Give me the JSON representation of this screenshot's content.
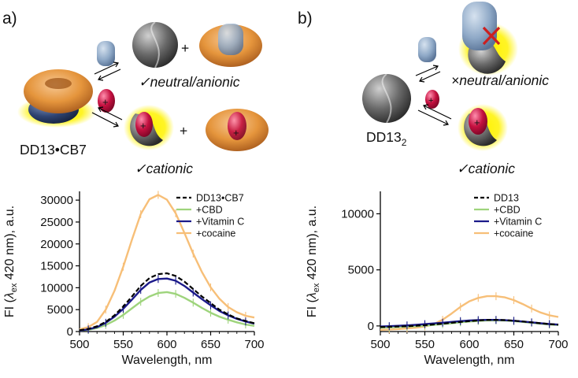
{
  "panels": {
    "a": {
      "letter": "a)",
      "host_label": "DD13•CB7",
      "neutral_label": "✓neutral/anionic",
      "cationic_label": "✓cationic",
      "plus": "+"
    },
    "b": {
      "letter": "b)",
      "host_main": "DD13",
      "host_sub": "2",
      "neutral_label": "×neutral/anionic",
      "cationic_label": "✓cationic",
      "plus": "+"
    }
  },
  "colors": {
    "host": "#000000",
    "cbd": "#9ed47c",
    "vitaminc": "#1b1a8a",
    "cocaine": "#f7bf78",
    "cb7": "#e5953c",
    "guest_neutral": "#8fa9c7",
    "guest_cation": "#c4103f",
    "glow": "#fff200",
    "dye": "#5a5a5a",
    "cross": "#cc1f1f"
  },
  "chart_data": [
    {
      "type": "line",
      "panel": "a",
      "xlabel": "Wavelength, nm",
      "ylabel_parts": [
        "FI (",
        "λ",
        "ex",
        " 420 nm), a.u."
      ],
      "xlim": [
        500,
        700
      ],
      "ylim": [
        0,
        32000
      ],
      "xticks": [
        500,
        550,
        600,
        650,
        700
      ],
      "yticks": [
        0,
        5000,
        10000,
        15000,
        20000,
        25000,
        30000
      ],
      "x": [
        500,
        510,
        520,
        530,
        540,
        550,
        560,
        570,
        580,
        590,
        600,
        610,
        620,
        630,
        640,
        650,
        660,
        670,
        680,
        690,
        700
      ],
      "series": [
        {
          "name": "DD13•CB7",
          "color_key": "host",
          "dashed": true,
          "values": [
            300,
            600,
            1200,
            2200,
            3700,
            5700,
            8000,
            10400,
            12200,
            13100,
            13300,
            12700,
            11400,
            9700,
            8000,
            6500,
            5000,
            3900,
            3000,
            2400,
            1900
          ]
        },
        {
          "name": "+CBD",
          "color_key": "cbd",
          "dashed": false,
          "values": [
            200,
            400,
            800,
            1500,
            2500,
            3800,
            5300,
            6800,
            8000,
            8800,
            9000,
            8600,
            7700,
            6600,
            5400,
            4300,
            3400,
            2700,
            2100,
            1600,
            1300
          ]
        },
        {
          "name": "+Vitamin C",
          "color_key": "vitaminc",
          "dashed": false,
          "values": [
            200,
            500,
            1000,
            2000,
            3400,
            5200,
            7300,
            9500,
            11200,
            12000,
            12100,
            11600,
            10400,
            8900,
            7400,
            6000,
            4700,
            3700,
            2900,
            2300,
            1800
          ]
        },
        {
          "name": "+cocaine",
          "color_key": "cocaine",
          "dashed": false,
          "values": [
            500,
            1000,
            2200,
            5000,
            9300,
            14800,
            21000,
            26800,
            30200,
            31200,
            30100,
            27000,
            22500,
            17800,
            13600,
            10100,
            7500,
            5600,
            4400,
            3600,
            3200
          ]
        }
      ]
    },
    {
      "type": "line",
      "panel": "b",
      "xlabel": "Wavelength, nm",
      "ylabel_parts": [
        "FI (",
        "λ",
        "ex",
        " 420 nm), a.u."
      ],
      "xlim": [
        500,
        700
      ],
      "ylim": [
        -500,
        12000
      ],
      "xticks": [
        500,
        550,
        600,
        650,
        700
      ],
      "yticks": [
        0,
        5000,
        10000
      ],
      "x": [
        500,
        510,
        520,
        530,
        540,
        550,
        560,
        570,
        580,
        590,
        600,
        610,
        620,
        630,
        640,
        650,
        660,
        670,
        680,
        690,
        700
      ],
      "series": [
        {
          "name": "DD13",
          "color_key": "host",
          "dashed": true,
          "values": [
            -100,
            -80,
            -50,
            -20,
            20,
            70,
            130,
            200,
            280,
            360,
            430,
            490,
            530,
            540,
            520,
            470,
            400,
            320,
            240,
            170,
            110
          ]
        },
        {
          "name": "+CBD",
          "color_key": "cbd",
          "dashed": false,
          "values": [
            -150,
            -130,
            -100,
            -60,
            -20,
            30,
            90,
            160,
            240,
            320,
            390,
            450,
            490,
            500,
            480,
            430,
            360,
            280,
            200,
            130,
            80
          ]
        },
        {
          "name": "+Vitamin C",
          "color_key": "vitaminc",
          "dashed": false,
          "values": [
            -50,
            -20,
            10,
            50,
            100,
            160,
            220,
            290,
            360,
            430,
            480,
            520,
            540,
            540,
            510,
            460,
            390,
            320,
            240,
            170,
            120
          ]
        },
        {
          "name": "+cocaine",
          "color_key": "cocaine",
          "dashed": false,
          "values": [
            -350,
            -320,
            -280,
            -220,
            -150,
            -50,
            150,
            550,
            1100,
            1700,
            2200,
            2500,
            2650,
            2650,
            2550,
            2300,
            1950,
            1550,
            1200,
            950,
            800
          ]
        }
      ]
    }
  ]
}
